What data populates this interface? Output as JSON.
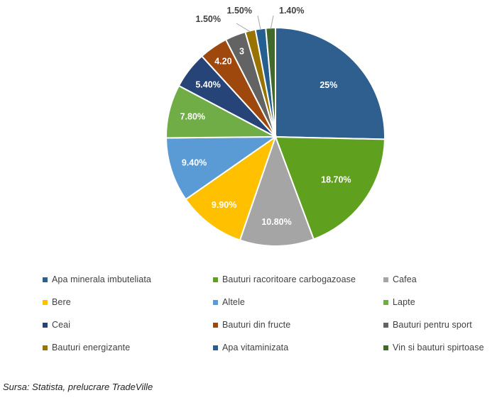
{
  "chart_data": {
    "type": "pie",
    "title": "",
    "slices": [
      {
        "label": "Apa minerala imbuteliata",
        "value": 25,
        "display": "25%",
        "color": "#2e5f8f"
      },
      {
        "label": "Bauturi racoritoare carbogazoase",
        "value": 18.7,
        "display": "18.70%",
        "color": "#5fa11f"
      },
      {
        "label": "Cafea",
        "value": 10.8,
        "display": "10.80%",
        "color": "#a5a5a5"
      },
      {
        "label": "Bere",
        "value": 9.9,
        "display": "9.90%",
        "color": "#ffc000"
      },
      {
        "label": "Altele",
        "value": 9.4,
        "display": "9.40%",
        "color": "#5b9bd5"
      },
      {
        "label": "Lapte",
        "value": 7.8,
        "display": "7.80%",
        "color": "#70ad47"
      },
      {
        "label": "Ceai",
        "value": 5.4,
        "display": "5.40%",
        "color": "#264478"
      },
      {
        "label": "Bauturi din fructe",
        "value": 4.2,
        "display": "4.20",
        "color": "#9e480e"
      },
      {
        "label": "Bauturi pentru sport",
        "value": 3.0,
        "display": "3",
        "color": "#636363"
      },
      {
        "label": "Bauturi energizante",
        "value": 1.5,
        "display": "1.50%",
        "color": "#997300"
      },
      {
        "label": "Apa vitaminizata",
        "value": 1.5,
        "display": "1.50%",
        "color": "#255e91"
      },
      {
        "label": "Vin si bauturi spirtoase",
        "value": 1.4,
        "display": "1.40%",
        "color": "#43682b"
      }
    ],
    "legend_position": "bottom"
  },
  "source": "Sursa: Statista, prelucrare TradeVille"
}
